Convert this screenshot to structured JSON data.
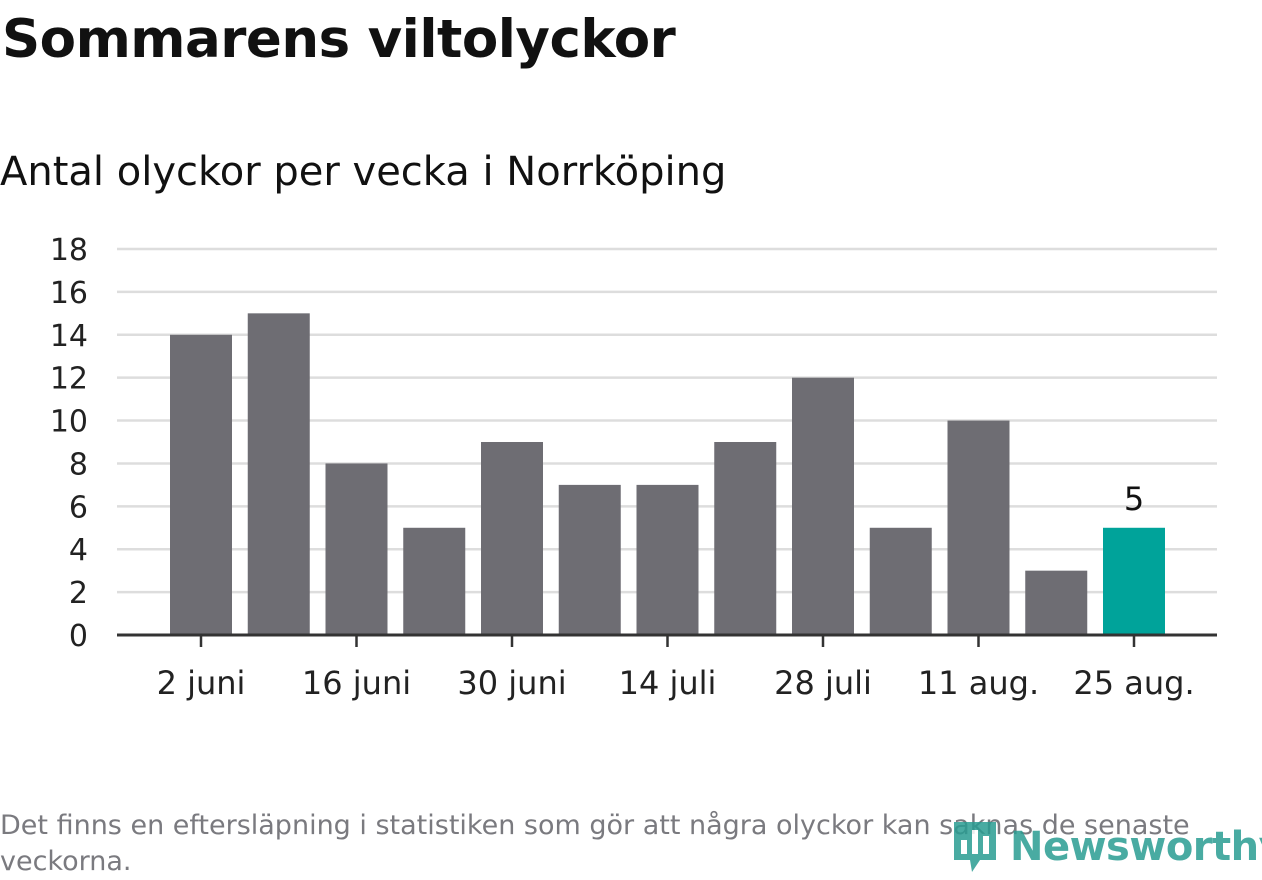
{
  "title": "Sommarens viltolyckor",
  "subtitle": "Antal olyckor per vecka i Norrköping",
  "footnote": "Det finns en eftersläpning i statistiken som gör att några olyckor kan saknas de senaste veckorna.",
  "logo": {
    "text": "Newsworthy",
    "icon": "newsworthy-logo-icon"
  },
  "colors": {
    "bar": "#6e6d73",
    "highlight": "#00a39a",
    "grid": "#dddddd",
    "axis": "#333333",
    "logo": "#2a9d92"
  },
  "chart_data": {
    "type": "bar",
    "title": "Sommarens viltolyckor",
    "subtitle": "Antal olyckor per vecka i Norrköping",
    "xlabel": "",
    "ylabel": "",
    "ylim": [
      0,
      18
    ],
    "yticks": [
      0,
      2,
      4,
      6,
      8,
      10,
      12,
      14,
      16,
      18
    ],
    "grid": true,
    "xtick_labels": [
      {
        "label": "2 juni",
        "bar_index": 0
      },
      {
        "label": "16 juni",
        "bar_index": 2
      },
      {
        "label": "30 juni",
        "bar_index": 4
      },
      {
        "label": "14 juli",
        "bar_index": 6
      },
      {
        "label": "28 juli",
        "bar_index": 8
      },
      {
        "label": "11 aug.",
        "bar_index": 10
      },
      {
        "label": "25 aug.",
        "bar_index": 12
      }
    ],
    "values": [
      14,
      15,
      8,
      5,
      9,
      7,
      7,
      9,
      12,
      5,
      10,
      3,
      5
    ],
    "highlight_index": 12,
    "data_labels": [
      {
        "bar_index": 12,
        "text": "5"
      }
    ]
  }
}
